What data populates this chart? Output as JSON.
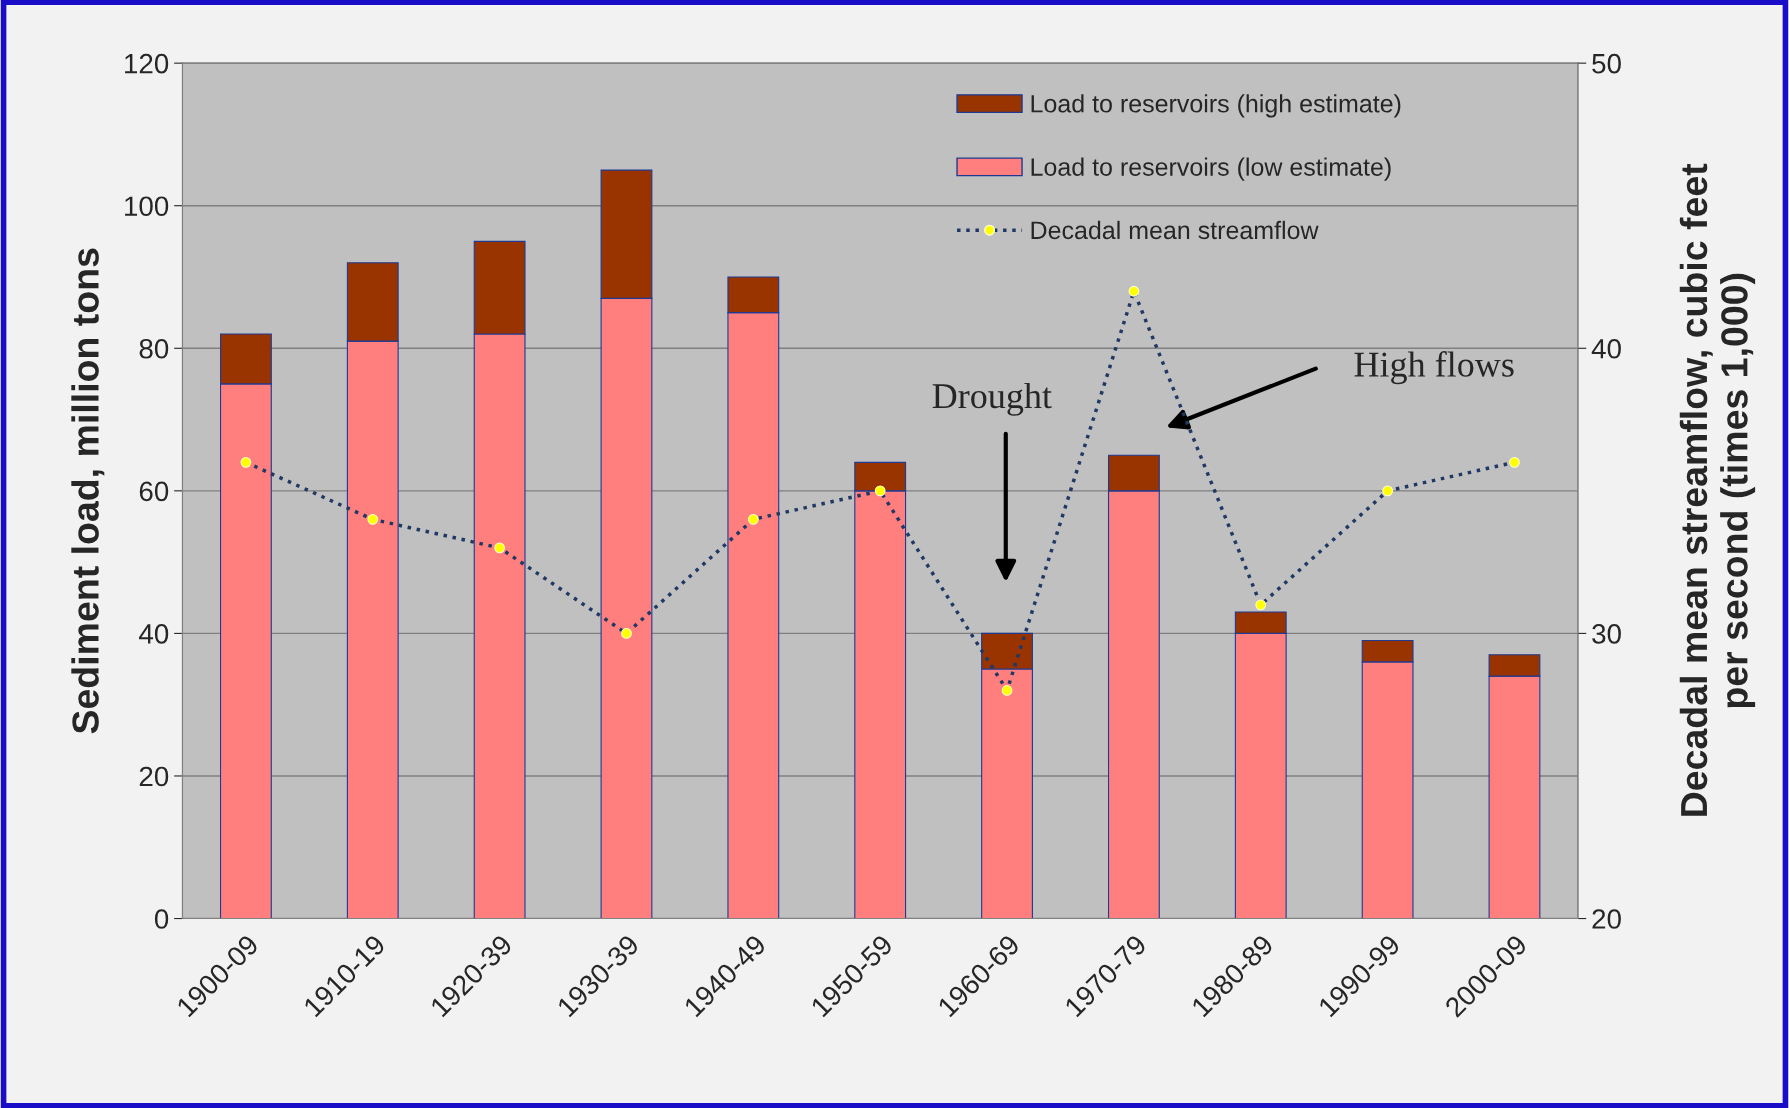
{
  "chart_data": {
    "type": "bar",
    "stacked": true,
    "categories": [
      "1900-09",
      "1910-19",
      "1920-39",
      "1930-39",
      "1940-49",
      "1950-59",
      "1960-69",
      "1970-79",
      "1980-89",
      "1990-99",
      "2000-09"
    ],
    "series": [
      {
        "name": "Load to reservoirs (low estimate)",
        "color": "#ff7f7f",
        "values": [
          75,
          81,
          82,
          87,
          85,
          60,
          35,
          60,
          40,
          36,
          34
        ]
      },
      {
        "name": "Load to reservoirs (high estimate)",
        "color": "#993300",
        "values": [
          7,
          11,
          13,
          18,
          5,
          4,
          5,
          5,
          3,
          3,
          3
        ]
      },
      {
        "name": "Decadal mean streamflow",
        "type": "line",
        "axis": "y2",
        "color": "#1f3864",
        "marker": "circle",
        "line_style": "dotted",
        "values": [
          36,
          34,
          33,
          30,
          34,
          35,
          28,
          42,
          31,
          35,
          36
        ]
      }
    ],
    "ylabel": "Sediment load, million tons",
    "y2label": "Decadal mean streamflow, cubic feet\nper second (times 1,000)",
    "ylim": [
      0,
      120
    ],
    "yticks": [
      0,
      20,
      40,
      60,
      80,
      100,
      120
    ],
    "y2lim": [
      20,
      50
    ],
    "y2ticks": [
      20,
      30,
      40,
      50
    ],
    "grid": "y",
    "legend": "top right",
    "annotations": [
      "Drought",
      "High flows"
    ]
  }
}
